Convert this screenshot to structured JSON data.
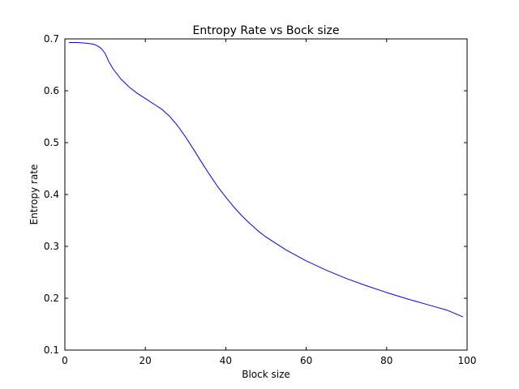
{
  "chart_data": {
    "type": "line",
    "title": "Entropy Rate vs Bock size",
    "xlabel": "Block size",
    "ylabel": "Entropy rate",
    "xlim": [
      0,
      100
    ],
    "ylim": [
      0.1,
      0.7
    ],
    "xticks": [
      0,
      20,
      40,
      60,
      80,
      100
    ],
    "yticks": [
      0.1,
      0.2,
      0.3,
      0.4,
      0.5,
      0.6,
      0.7
    ],
    "xtick_labels": [
      "0",
      "20",
      "40",
      "60",
      "80",
      "100"
    ],
    "ytick_labels": [
      "0.1",
      "0.2",
      "0.3",
      "0.4",
      "0.5",
      "0.6",
      "0.7"
    ],
    "grid": false,
    "line_color": "#0000ff",
    "series": [
      {
        "x": [
          1,
          3,
          5,
          7,
          8,
          9,
          10,
          11,
          12,
          14,
          16,
          18,
          20,
          22,
          24,
          26,
          28,
          30,
          32,
          34,
          36,
          38,
          40,
          42,
          44,
          46,
          48,
          50,
          55,
          60,
          65,
          70,
          75,
          80,
          85,
          90,
          95,
          99
        ],
        "values": [
          0.693,
          0.693,
          0.692,
          0.69,
          0.687,
          0.682,
          0.672,
          0.655,
          0.642,
          0.622,
          0.607,
          0.595,
          0.585,
          0.575,
          0.565,
          0.551,
          0.533,
          0.511,
          0.487,
          0.462,
          0.438,
          0.415,
          0.395,
          0.376,
          0.359,
          0.344,
          0.33,
          0.318,
          0.293,
          0.272,
          0.254,
          0.238,
          0.224,
          0.211,
          0.199,
          0.188,
          0.177,
          0.164
        ]
      }
    ]
  }
}
